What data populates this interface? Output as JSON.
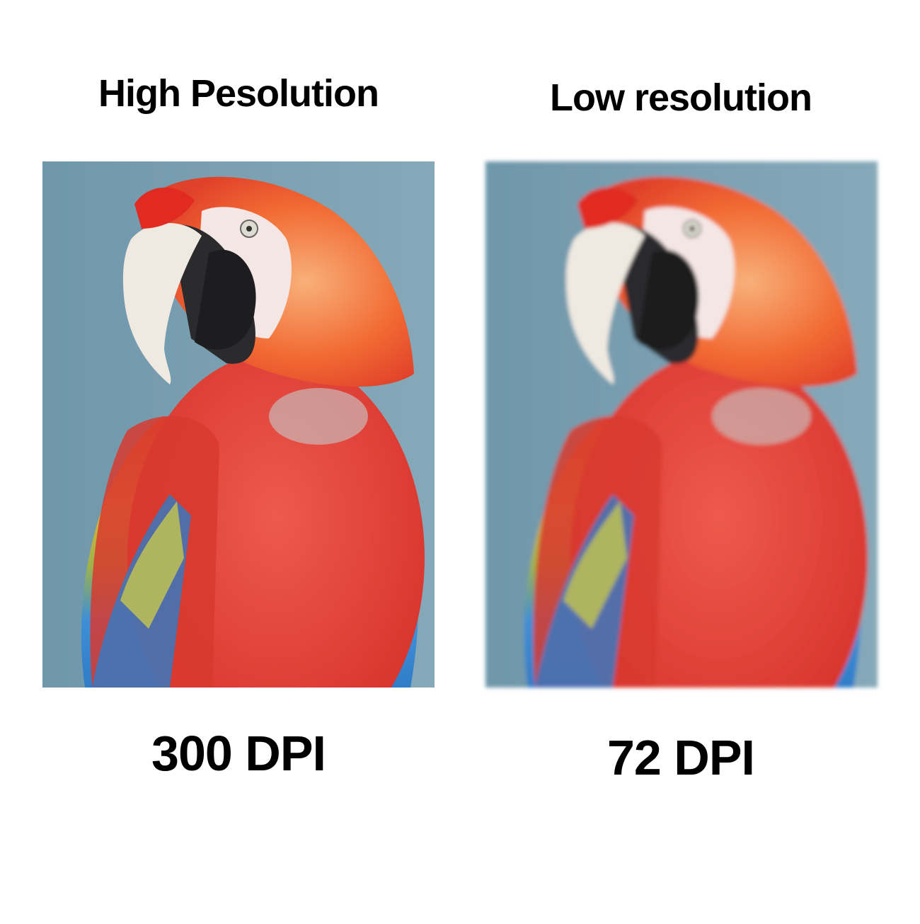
{
  "panels": [
    {
      "title": "High Pesolution",
      "caption": "300 DPI"
    },
    {
      "title": "Low resolution",
      "caption": "72 DPI"
    }
  ]
}
